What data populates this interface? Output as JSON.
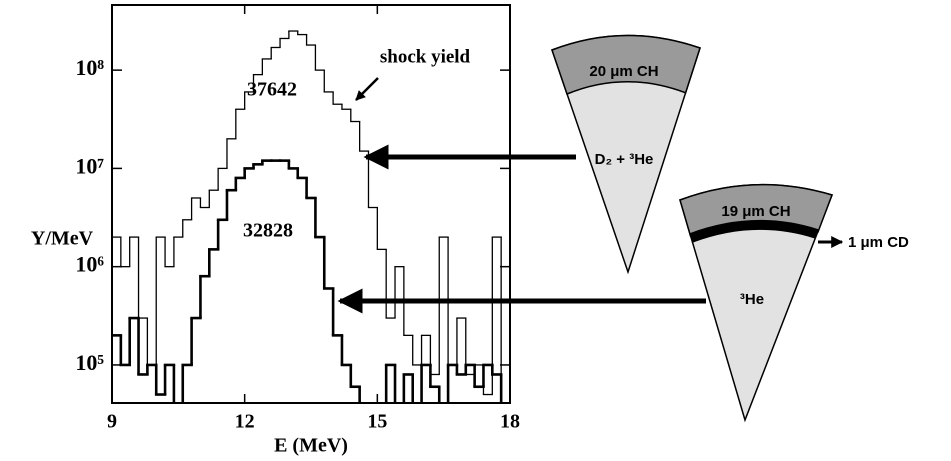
{
  "chart_data": {
    "type": "step",
    "xlabel": "E (MeV)",
    "ylabel": "Y/MeV",
    "log_y": true,
    "xlim": [
      9,
      18
    ],
    "xticks": [
      9,
      12,
      15,
      18
    ],
    "ylim": [
      41000,
      460000000
    ],
    "yticks": [
      {
        "value": 100000,
        "label": "10⁵"
      },
      {
        "value": 1000000,
        "label": "10⁶"
      },
      {
        "value": 10000000,
        "label": "10⁷"
      },
      {
        "value": 100000000,
        "label": "10⁸"
      }
    ],
    "x": [
      9,
      9.2,
      9.4,
      9.6,
      9.8,
      10,
      10.2,
      10.4,
      10.6,
      10.8,
      11,
      11.2,
      11.4,
      11.6,
      11.8,
      12,
      12.2,
      12.4,
      12.6,
      12.8,
      13,
      13.2,
      13.4,
      13.6,
      13.8,
      14,
      14.2,
      14.4,
      14.6,
      14.8,
      15,
      15.2,
      15.4,
      15.6,
      15.8,
      16,
      16.2,
      16.4,
      16.6,
      16.8,
      17,
      17.2,
      17.4,
      17.6,
      17.8
    ],
    "series": [
      {
        "name": "37642",
        "color": "#000000",
        "line_width": 1.3,
        "values": [
          2000000,
          1000000,
          2000000,
          300000,
          100000,
          2000000,
          1000000,
          2000000,
          3000000,
          5000000,
          4000000,
          6000000,
          10000000,
          20000000,
          40000000,
          60000000,
          90000000,
          130000000,
          170000000,
          210000000,
          250000000,
          230000000,
          180000000,
          100000000,
          60000000,
          45000000,
          40000000,
          30000000,
          15000000,
          4000000,
          1500000,
          300000,
          1000000,
          200000,
          100000,
          200000,
          80000,
          2000000,
          100000,
          300000,
          80000,
          100000,
          50000,
          2000000,
          30000
        ]
      },
      {
        "name": "32828",
        "color": "#000000",
        "line_width": 2.6,
        "values": [
          200000,
          100000,
          300000,
          80000,
          100000,
          50000,
          100000,
          30000,
          100000,
          300000,
          800000,
          1500000,
          3000000,
          6000000,
          8000000,
          10000000,
          11000000,
          12000000,
          12000000,
          12000000,
          10000000,
          8000000,
          5000000,
          2000000,
          600000,
          200000,
          100000,
          60000,
          30000,
          30000,
          30000,
          100000,
          30000,
          80000,
          30000,
          100000,
          60000,
          30000,
          100000,
          80000,
          100000,
          60000,
          100000,
          80000,
          30000
        ]
      }
    ],
    "annotation": "shock yield"
  },
  "diagram": {
    "targets": [
      {
        "shell": "20 μm CH",
        "fill": "D₂ + ³He"
      },
      {
        "shell": "19 μm CH",
        "layer": "1 μm CD",
        "fill": "³He"
      }
    ]
  }
}
